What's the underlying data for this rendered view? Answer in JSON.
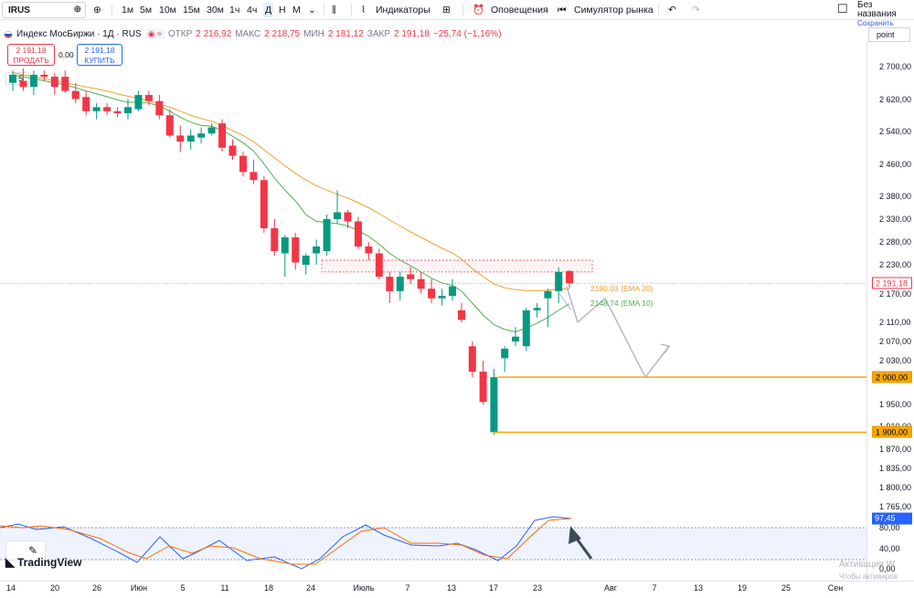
{
  "toolbar": {
    "symbol": "IRUS",
    "timeframes": [
      "1м",
      "5м",
      "10м",
      "15м",
      "30м",
      "1ч",
      "4ч",
      "Д",
      "Н",
      "М"
    ],
    "active_timeframe": "Д",
    "indicators_label": "Индикаторы",
    "alerts_label": "Оповещения",
    "replay_label": "Симулятор рынка",
    "layout_title": "Без названия",
    "layout_status": "Сохранить"
  },
  "legend": {
    "title": "Индекс МосБиржи · 1Д · RUS",
    "open_label": "ОТКР",
    "open": "2 216,92",
    "high_label": "МАКС",
    "high": "2 218,75",
    "low_label": "МИН",
    "low": "2 181,12",
    "close_label": "ЗАКР",
    "close": "2 191,18",
    "change": "−25,74 (−1,16%)"
  },
  "trade": {
    "sell_price": "2 191,18",
    "sell_label": "ПРОДАТЬ",
    "spread": "0,00",
    "buy_price": "2 191,18",
    "buy_label": "КУПИТЬ"
  },
  "scale_mode": "point",
  "indicator_count": "5",
  "price_axis": {
    "labels": [
      {
        "text": "2 700,00",
        "value": 2700
      },
      {
        "text": "2 620,00",
        "value": 2620
      },
      {
        "text": "2 540,00",
        "value": 2540
      },
      {
        "text": "2 460,00",
        "value": 2460
      },
      {
        "text": "2 380,00",
        "value": 2380
      },
      {
        "text": "2 330,00",
        "value": 2330
      },
      {
        "text": "2 280,00",
        "value": 2280
      },
      {
        "text": "2 230,00",
        "value": 2230
      },
      {
        "text": "2 170,00",
        "value": 2170
      },
      {
        "text": "2 110,00",
        "value": 2110
      },
      {
        "text": "2 070,00",
        "value": 2070
      },
      {
        "text": "2 030,00",
        "value": 2030
      },
      {
        "text": "1 950,00",
        "value": 1950
      },
      {
        "text": "1 910,00",
        "value": 1910
      },
      {
        "text": "1 870,00",
        "value": 1870
      },
      {
        "text": "1 835,00",
        "value": 1835
      },
      {
        "text": "1 800,00",
        "value": 1800
      },
      {
        "text": "1 765,00",
        "value": 1765
      }
    ],
    "current_price": "2 191,18",
    "level_2000": "2 000,00",
    "level_1900": "1 900,00"
  },
  "oscillator_axis": {
    "labels": [
      "80,00",
      "40,00",
      "0,00"
    ],
    "current_value": "97,45"
  },
  "ema": {
    "ema20_label": "2180.03 (EMA 20)",
    "ema10_label": "2148.74 (EMA 10)",
    "ema20_color": "#f0a030",
    "ema10_color": "#4caf50"
  },
  "time_axis": {
    "labels": [
      "14",
      "20",
      "26",
      "Июн",
      "5",
      "11",
      "18",
      "24",
      "Июль",
      "7",
      "13",
      "17",
      "23",
      "Авг",
      "7",
      "13",
      "19",
      "25",
      "Сен"
    ]
  },
  "colors": {
    "up": "#089981",
    "down": "#f23645",
    "level": "#f7a600",
    "stoch_k": "#2962ff",
    "stoch_d": "#ff6d00"
  },
  "chart_data": {
    "type": "candlestick",
    "title": "Индекс МосБиржи · 1Д · RUS",
    "candles": [
      {
        "o": 2660,
        "h": 2690,
        "l": 2640,
        "c": 2680
      },
      {
        "o": 2665,
        "h": 2695,
        "l": 2640,
        "c": 2650
      },
      {
        "o": 2650,
        "h": 2690,
        "l": 2630,
        "c": 2680
      },
      {
        "o": 2680,
        "h": 2690,
        "l": 2665,
        "c": 2675
      },
      {
        "o": 2675,
        "h": 2685,
        "l": 2630,
        "c": 2650
      },
      {
        "o": 2675,
        "h": 2690,
        "l": 2635,
        "c": 2640
      },
      {
        "o": 2640,
        "h": 2660,
        "l": 2610,
        "c": 2620
      },
      {
        "o": 2625,
        "h": 2640,
        "l": 2580,
        "c": 2590
      },
      {
        "o": 2590,
        "h": 2610,
        "l": 2570,
        "c": 2600
      },
      {
        "o": 2600,
        "h": 2610,
        "l": 2580,
        "c": 2590
      },
      {
        "o": 2590,
        "h": 2600,
        "l": 2575,
        "c": 2585
      },
      {
        "o": 2585,
        "h": 2620,
        "l": 2570,
        "c": 2600
      },
      {
        "o": 2595,
        "h": 2640,
        "l": 2590,
        "c": 2630
      },
      {
        "o": 2630,
        "h": 2640,
        "l": 2605,
        "c": 2615
      },
      {
        "o": 2615,
        "h": 2630,
        "l": 2570,
        "c": 2580
      },
      {
        "o": 2580,
        "h": 2595,
        "l": 2525,
        "c": 2530
      },
      {
        "o": 2530,
        "h": 2555,
        "l": 2490,
        "c": 2515
      },
      {
        "o": 2515,
        "h": 2545,
        "l": 2495,
        "c": 2530
      },
      {
        "o": 2525,
        "h": 2550,
        "l": 2510,
        "c": 2535
      },
      {
        "o": 2535,
        "h": 2560,
        "l": 2530,
        "c": 2550
      },
      {
        "o": 2560,
        "h": 2570,
        "l": 2490,
        "c": 2500
      },
      {
        "o": 2505,
        "h": 2520,
        "l": 2470,
        "c": 2480
      },
      {
        "o": 2480,
        "h": 2490,
        "l": 2430,
        "c": 2440
      },
      {
        "o": 2440,
        "h": 2470,
        "l": 2410,
        "c": 2420
      },
      {
        "o": 2420,
        "h": 2430,
        "l": 2300,
        "c": 2310
      },
      {
        "o": 2310,
        "h": 2330,
        "l": 2250,
        "c": 2260
      },
      {
        "o": 2255,
        "h": 2295,
        "l": 2205,
        "c": 2290
      },
      {
        "o": 2290,
        "h": 2300,
        "l": 2220,
        "c": 2235
      },
      {
        "o": 2230,
        "h": 2255,
        "l": 2210,
        "c": 2250
      },
      {
        "o": 2255,
        "h": 2285,
        "l": 2230,
        "c": 2270
      },
      {
        "o": 2260,
        "h": 2340,
        "l": 2250,
        "c": 2330
      },
      {
        "o": 2330,
        "h": 2395,
        "l": 2320,
        "c": 2345
      },
      {
        "o": 2345,
        "h": 2350,
        "l": 2310,
        "c": 2325
      },
      {
        "o": 2325,
        "h": 2335,
        "l": 2265,
        "c": 2270
      },
      {
        "o": 2270,
        "h": 2280,
        "l": 2240,
        "c": 2255
      },
      {
        "o": 2255,
        "h": 2265,
        "l": 2200,
        "c": 2205
      },
      {
        "o": 2205,
        "h": 2215,
        "l": 2150,
        "c": 2175
      },
      {
        "o": 2175,
        "h": 2215,
        "l": 2155,
        "c": 2205
      },
      {
        "o": 2210,
        "h": 2225,
        "l": 2190,
        "c": 2200
      },
      {
        "o": 2200,
        "h": 2215,
        "l": 2170,
        "c": 2180
      },
      {
        "o": 2180,
        "h": 2200,
        "l": 2150,
        "c": 2160
      },
      {
        "o": 2160,
        "h": 2180,
        "l": 2145,
        "c": 2165
      },
      {
        "o": 2165,
        "h": 2200,
        "l": 2155,
        "c": 2185
      },
      {
        "o": 2135,
        "h": 2150,
        "l": 2110,
        "c": 2115
      },
      {
        "o": 2060,
        "h": 2070,
        "l": 2000,
        "c": 2010
      },
      {
        "o": 2010,
        "h": 2030,
        "l": 1950,
        "c": 1955
      },
      {
        "o": 1900,
        "h": 2015,
        "l": 1895,
        "c": 2000
      },
      {
        "o": 2035,
        "h": 2060,
        "l": 2010,
        "c": 2055
      },
      {
        "o": 2070,
        "h": 2100,
        "l": 2060,
        "c": 2080
      },
      {
        "o": 2060,
        "h": 2140,
        "l": 2050,
        "c": 2135
      },
      {
        "o": 2135,
        "h": 2150,
        "l": 2120,
        "c": 2140
      },
      {
        "o": 2160,
        "h": 2180,
        "l": 2100,
        "c": 2175
      },
      {
        "o": 2175,
        "h": 2225,
        "l": 2150,
        "c": 2215
      },
      {
        "o": 2216.92,
        "h": 2218.75,
        "l": 2181.12,
        "c": 2191.18
      }
    ],
    "ema20": [
      2685,
      2680,
      2675,
      2670,
      2665,
      2660,
      2655,
      2650,
      2645,
      2640,
      2633,
      2627,
      2622,
      2615,
      2608,
      2600,
      2590,
      2580,
      2572,
      2565,
      2555,
      2542,
      2530,
      2515,
      2495,
      2475,
      2455,
      2437,
      2420,
      2406,
      2395,
      2385,
      2376,
      2366,
      2355,
      2342,
      2328,
      2315,
      2302,
      2290,
      2278,
      2266,
      2256,
      2242,
      2222,
      2205,
      2190,
      2182,
      2178,
      2176,
      2176,
      2177,
      2179,
      2180.03
    ],
    "ema10": [
      2680,
      2675,
      2670,
      2665,
      2660,
      2655,
      2648,
      2640,
      2633,
      2626,
      2618,
      2612,
      2612,
      2610,
      2603,
      2590,
      2575,
      2563,
      2555,
      2553,
      2543,
      2528,
      2512,
      2492,
      2460,
      2425,
      2395,
      2370,
      2340,
      2325,
      2323,
      2320,
      2315,
      2305,
      2292,
      2275,
      2255,
      2240,
      2228,
      2215,
      2202,
      2192,
      2187,
      2175,
      2150,
      2125,
      2105,
      2095,
      2090,
      2098,
      2108,
      2120,
      2135,
      2148.74
    ],
    "levels": [
      2000,
      1900
    ],
    "ylim": [
      1765,
      2730
    ]
  }
}
